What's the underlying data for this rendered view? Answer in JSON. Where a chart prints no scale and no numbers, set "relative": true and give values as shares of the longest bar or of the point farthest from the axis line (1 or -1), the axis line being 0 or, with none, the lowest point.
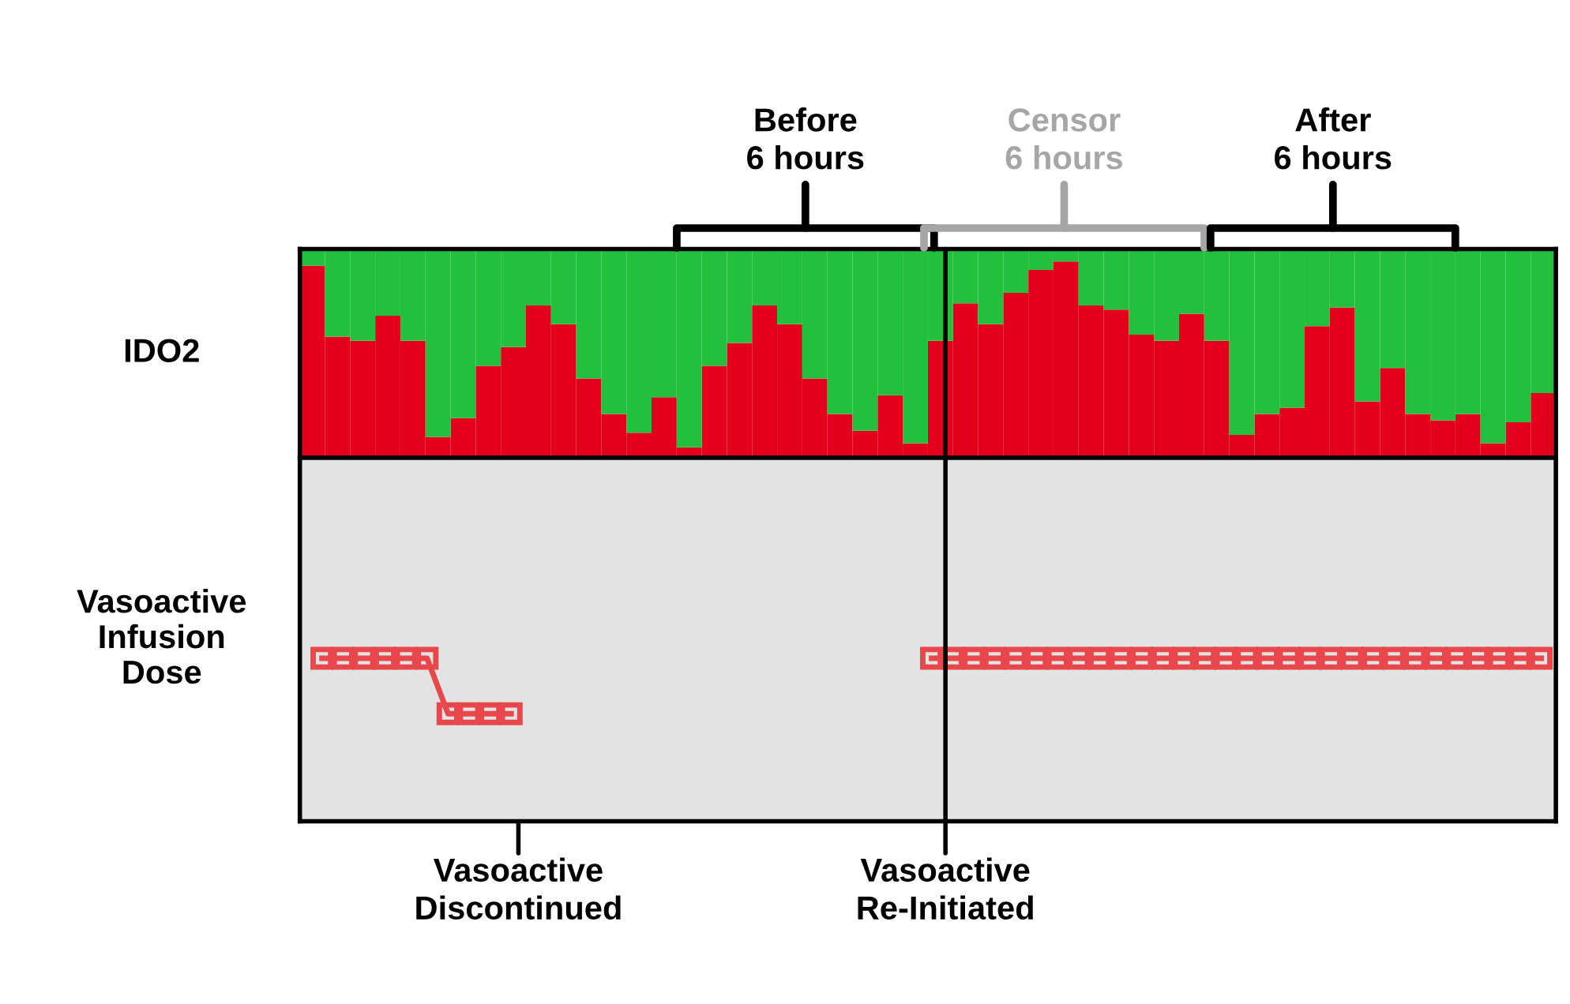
{
  "chart_data": [
    {
      "type": "bar",
      "stacked": true,
      "relative": true,
      "ylabel": "IDO2",
      "categories": [
        null,
        null,
        null,
        null,
        null,
        null,
        null,
        null,
        null,
        null,
        null,
        null,
        null,
        null,
        null,
        null,
        null,
        null,
        null,
        null,
        null,
        null,
        null,
        null,
        null,
        null,
        null,
        null,
        null,
        null,
        null,
        null,
        null,
        null,
        null,
        null,
        null,
        null,
        null,
        null,
        null,
        null,
        null,
        null,
        null,
        null,
        null,
        null,
        null,
        null
      ],
      "series": [
        {
          "color": "#e2001a",
          "values": [
            0.92,
            0.58,
            0.56,
            0.68,
            0.56,
            0.1,
            0.19,
            0.44,
            0.53,
            0.73,
            0.64,
            0.38,
            0.21,
            0.12,
            0.29,
            0.05,
            0.44,
            0.55,
            0.73,
            0.64,
            0.38,
            0.21,
            0.13,
            0.3,
            0.07,
            0.56,
            0.74,
            0.64,
            0.79,
            0.9,
            0.94,
            0.73,
            0.71,
            0.59,
            0.56,
            0.69,
            0.56,
            0.11,
            0.21,
            0.24,
            0.63,
            0.72,
            0.27,
            0.43,
            0.21,
            0.18,
            0.21,
            0.07,
            0.17,
            0.31
          ]
        },
        {
          "color": "#22c03c",
          "values": [
            0.08,
            0.42,
            0.44,
            0.32,
            0.44,
            0.9,
            0.81,
            0.56,
            0.47,
            0.27,
            0.36,
            0.62,
            0.79,
            0.88,
            0.71,
            0.95,
            0.56,
            0.45,
            0.27,
            0.36,
            0.62,
            0.79,
            0.87,
            0.7,
            0.93,
            0.44,
            0.26,
            0.36,
            0.21,
            0.1,
            0.06,
            0.27,
            0.29,
            0.41,
            0.44,
            0.31,
            0.44,
            0.89,
            0.79,
            0.76,
            0.37,
            0.28,
            0.73,
            0.57,
            0.79,
            0.82,
            0.79,
            0.93,
            0.83,
            0.69
          ]
        }
      ],
      "annotations": [
        "Before\n6 hours",
        "Censor\n6 hours",
        "After\n6 hours"
      ]
    },
    {
      "type": "line",
      "relative": true,
      "ylabel": "Vasoactive\nInfusion\nDose",
      "marker": "square",
      "categories": [
        null,
        null,
        null,
        null,
        null,
        null,
        null,
        null,
        null,
        null,
        null,
        null,
        null,
        null,
        null,
        null,
        null,
        null,
        null,
        null,
        null,
        null,
        null,
        null,
        null,
        null,
        null,
        null,
        null,
        null,
        null,
        null,
        null,
        null,
        null,
        null,
        null,
        null,
        null,
        null,
        null,
        null,
        null,
        null,
        null,
        null,
        null,
        null,
        null,
        null,
        null,
        null,
        null,
        null,
        null,
        null,
        null,
        null,
        null
      ],
      "series": [
        {
          "color": "#e8474b",
          "values": [
            1,
            1,
            1,
            1,
            1,
            1,
            0.66,
            0.66,
            0.66,
            0.66,
            null,
            null,
            null,
            null,
            null,
            null,
            null,
            null,
            null,
            null,
            null,
            null,
            null,
            null,
            null,
            null,
            null,
            null,
            null,
            null,
            null,
            null,
            null,
            null,
            null,
            null,
            null,
            null,
            null,
            null,
            null,
            null,
            null,
            null,
            null,
            null,
            null,
            null,
            null,
            null,
            null,
            null,
            null,
            null,
            null,
            null,
            null,
            null,
            null
          ]
        },
        {
          "color": "#e8474b",
          "values": [
            null,
            null,
            null,
            null,
            null,
            null,
            null,
            null,
            null,
            null,
            null,
            null,
            null,
            null,
            null,
            null,
            null,
            null,
            null,
            null,
            null,
            null,
            null,
            null,
            null,
            null,
            null,
            null,
            null,
            1,
            1,
            1,
            1,
            1,
            1,
            1,
            1,
            1,
            1,
            1,
            1,
            1,
            1,
            1,
            1,
            1,
            1,
            1,
            1,
            1,
            1,
            1,
            1,
            1,
            1,
            1,
            1,
            1,
            1
          ]
        }
      ],
      "annotations": [
        "Vasoactive\nDiscontinued",
        "Vasoactive\nRe-Initiated"
      ]
    }
  ]
}
